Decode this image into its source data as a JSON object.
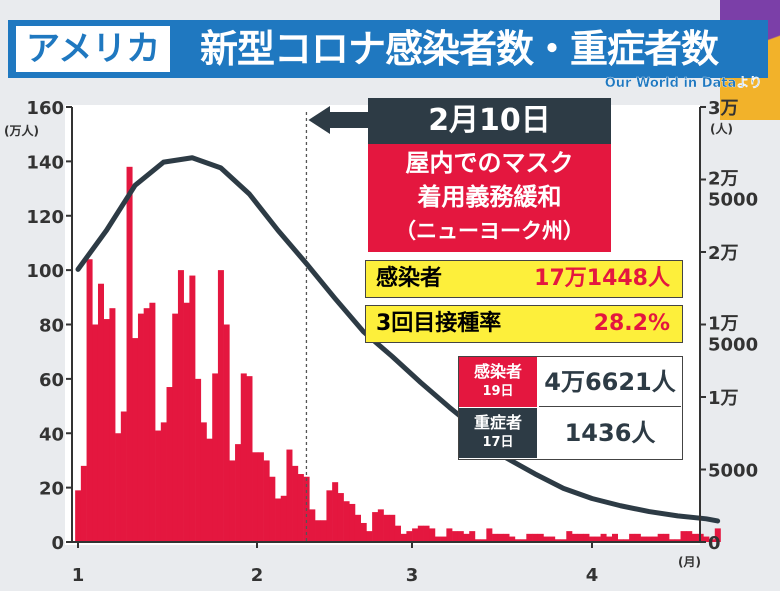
{
  "header": {
    "country": "アメリカ",
    "title": "新型コロナ感染者数・重症者数",
    "source": "Our World in Dataより"
  },
  "annotation": {
    "date": "2月10日",
    "event_lines": [
      "屋内でのマスク",
      "着用義務緩和",
      "（ニューヨーク州）"
    ]
  },
  "stats": {
    "infected_label": "感染者",
    "infected_value": "17万1448人",
    "booster_label": "3回目接種率",
    "booster_value": "28.2%",
    "latest_infected_label": "感染者",
    "latest_infected_date": "19日",
    "latest_infected_value": "4万6621人",
    "severe_label": "重症者",
    "severe_date": "17日",
    "severe_value": "1436人"
  },
  "chart_data": {
    "type": "bar+line",
    "title": "新型コロナ感染者数・重症者数",
    "x_ticks": [
      "1",
      "2",
      "3",
      "4"
    ],
    "x_unit": "(月)",
    "left_axis": {
      "unit": "(万人)",
      "ticks": [
        "0",
        "20",
        "40",
        "60",
        "80",
        "100",
        "120",
        "140",
        "160"
      ],
      "ylim": [
        0,
        160
      ]
    },
    "right_axis": {
      "unit": "(人)",
      "ticks": [
        "0",
        "5000",
        "1万",
        "1万\n5000",
        "2万",
        "2万\n5000",
        "3万"
      ],
      "ylim": [
        0,
        30000
      ]
    },
    "series": [
      {
        "name": "感染者数(万人)",
        "type": "bar",
        "color": "#e4173f",
        "start": "1/1",
        "values": [
          19,
          28,
          104,
          80,
          95,
          82,
          86,
          40,
          48,
          138,
          75,
          84,
          86,
          88,
          41,
          44,
          57,
          84,
          100,
          88,
          98,
          60,
          44,
          38,
          62,
          100,
          80,
          30,
          36,
          62,
          61,
          33,
          33,
          30,
          24,
          16,
          17,
          34,
          28,
          25,
          24,
          12,
          8,
          8,
          19,
          22,
          18,
          15,
          14,
          10,
          7,
          4,
          11,
          12,
          10,
          10,
          6,
          3,
          4,
          5,
          6,
          6,
          5,
          2,
          2,
          5,
          4,
          4,
          3,
          4,
          1,
          1,
          5,
          3,
          3,
          3,
          2,
          1,
          1,
          3,
          3,
          3,
          2,
          2,
          1,
          1,
          4,
          3,
          3,
          3,
          2,
          2,
          3,
          2,
          3,
          1,
          1,
          3,
          3,
          2,
          2,
          2,
          3,
          3,
          1,
          1,
          4,
          4,
          3,
          3,
          2,
          1,
          5
        ]
      },
      {
        "name": "重症者数(人)",
        "type": "line",
        "color": "#2d3b45",
        "points": [
          [
            0,
            18800
          ],
          [
            5,
            21500
          ],
          [
            10,
            24600
          ],
          [
            15,
            26200
          ],
          [
            20,
            26500
          ],
          [
            25,
            25800
          ],
          [
            30,
            24000
          ],
          [
            35,
            21500
          ],
          [
            40,
            19200
          ],
          [
            45,
            16800
          ],
          [
            50,
            14500
          ],
          [
            55,
            12800
          ],
          [
            60,
            11000
          ],
          [
            65,
            9300
          ],
          [
            70,
            7700
          ],
          [
            75,
            5800
          ],
          [
            80,
            4700
          ],
          [
            85,
            3700
          ],
          [
            90,
            3000
          ],
          [
            95,
            2500
          ],
          [
            100,
            2100
          ],
          [
            105,
            1800
          ],
          [
            110,
            1600
          ],
          [
            112,
            1450
          ]
        ]
      }
    ],
    "marker": {
      "day": 40,
      "label": "2月10日"
    }
  }
}
